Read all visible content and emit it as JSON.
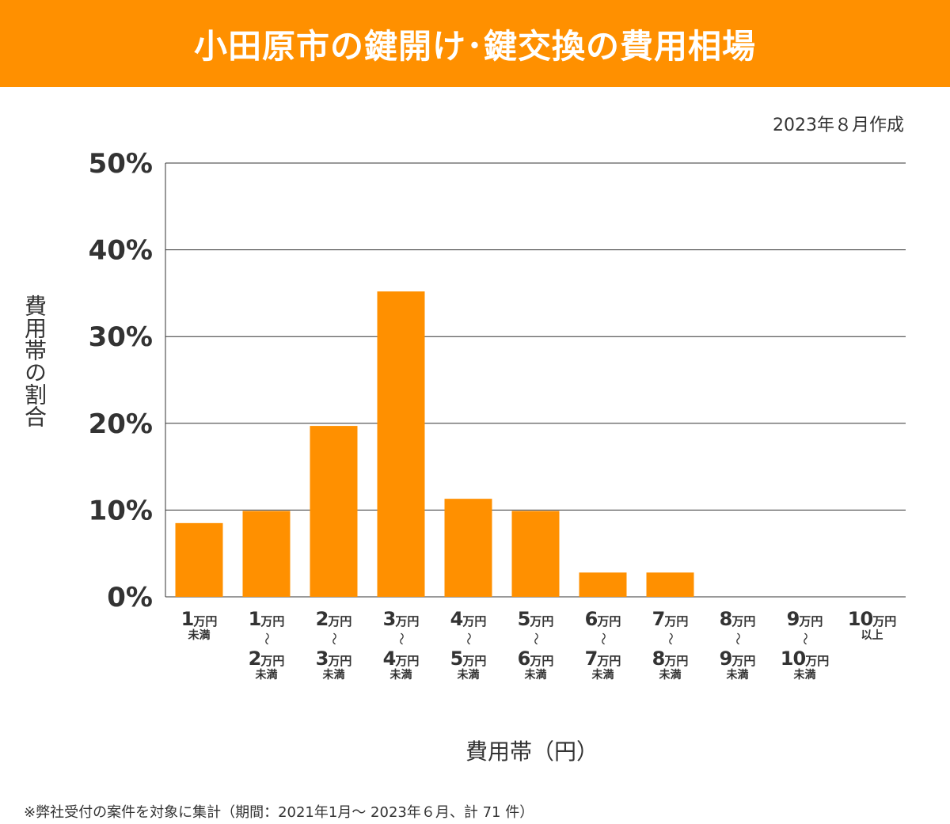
{
  "header": {
    "title": "小田原市の鍵開け･鍵交換の費用相場"
  },
  "date": "2023年８月作成",
  "footnote": "※弊社受付の案件を対象に集計（期間：2021年1月～ 2023年６月、計 71 件）",
  "colors": {
    "bar": "#ff9000",
    "header": "#ff9000",
    "grid": "#333333"
  },
  "chart_data": {
    "type": "bar",
    "title": "小田原市の鍵開け･鍵交換の費用相場",
    "xlabel": "費用帯（円）",
    "ylabel": "費用帯の割合",
    "ylim": [
      0,
      50
    ],
    "yticks": [
      "0%",
      "10%",
      "20%",
      "30%",
      "40%",
      "50%"
    ],
    "ytick_values": [
      0,
      10,
      20,
      30,
      40,
      50
    ],
    "grid": true,
    "categories": [
      {
        "from_num": "1",
        "from_unit": "万円",
        "suffix": "未満"
      },
      {
        "from_num": "1",
        "from_unit": "万円",
        "wave": "〜",
        "to_num": "2",
        "to_unit": "万円",
        "suffix": "未満"
      },
      {
        "from_num": "2",
        "from_unit": "万円",
        "wave": "〜",
        "to_num": "3",
        "to_unit": "万円",
        "suffix": "未満"
      },
      {
        "from_num": "3",
        "from_unit": "万円",
        "wave": "〜",
        "to_num": "4",
        "to_unit": "万円",
        "suffix": "未満"
      },
      {
        "from_num": "4",
        "from_unit": "万円",
        "wave": "〜",
        "to_num": "5",
        "to_unit": "万円",
        "suffix": "未満"
      },
      {
        "from_num": "5",
        "from_unit": "万円",
        "wave": "〜",
        "to_num": "6",
        "to_unit": "万円",
        "suffix": "未満"
      },
      {
        "from_num": "6",
        "from_unit": "万円",
        "wave": "〜",
        "to_num": "7",
        "to_unit": "万円",
        "suffix": "未満"
      },
      {
        "from_num": "7",
        "from_unit": "万円",
        "wave": "〜",
        "to_num": "8",
        "to_unit": "万円",
        "suffix": "未満"
      },
      {
        "from_num": "8",
        "from_unit": "万円",
        "wave": "〜",
        "to_num": "9",
        "to_unit": "万円",
        "suffix": "未満"
      },
      {
        "from_num": "9",
        "from_unit": "万円",
        "wave": "〜",
        "to_num": "10",
        "to_unit": "万円",
        "suffix": "未満"
      },
      {
        "from_num": "10",
        "from_unit": "万円",
        "suffix": "以上"
      }
    ],
    "values": [
      8.5,
      9.9,
      19.7,
      35.2,
      11.3,
      9.9,
      2.8,
      2.8,
      0,
      0,
      0
    ]
  }
}
